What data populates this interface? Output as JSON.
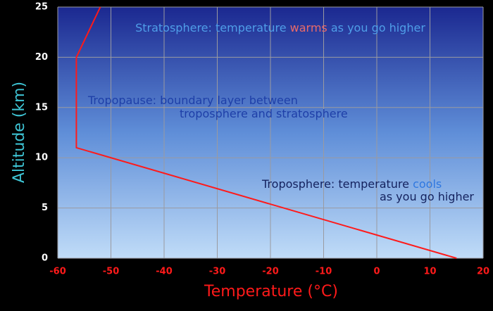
{
  "chart_data": {
    "type": "line",
    "xlabel": "Temperature (°C)",
    "ylabel": "Altitude (km)",
    "xlim": [
      -60,
      20
    ],
    "xticks": [
      -60,
      -50,
      -40,
      -30,
      -20,
      -10,
      0,
      10,
      20
    ],
    "ylim": [
      0,
      25
    ],
    "yticks": [
      0,
      5,
      10,
      15,
      20,
      25
    ],
    "grid": true,
    "series": [
      {
        "color": "#ff1a1a",
        "x": [
          15,
          -56.5,
          -56.5,
          -52
        ],
        "values": [
          0,
          11,
          20,
          25
        ]
      }
    ],
    "annotations": [
      {
        "lines": [
          [
            {
              "text": "Stratosphere: temperature ",
              "color": "#4f9ee8"
            },
            {
              "text": "warms",
              "color": "#e86a6a"
            },
            {
              "text": " as you go higher",
              "color": "#4f9ee8"
            }
          ]
        ]
      },
      {
        "lines": [
          [
            {
              "text": "Tropopause: boundary layer between",
              "color": "#1e3fa8"
            }
          ],
          [
            {
              "text": "troposphere and stratosphere",
              "color": "#1e3fa8"
            }
          ]
        ]
      },
      {
        "lines": [
          [
            {
              "text": "Troposphere: temperature ",
              "color": "#14225e"
            },
            {
              "text": "cools",
              "color": "#2f78e0"
            }
          ],
          [
            {
              "text": "as you go higher",
              "color": "#14225e"
            }
          ]
        ]
      }
    ]
  }
}
